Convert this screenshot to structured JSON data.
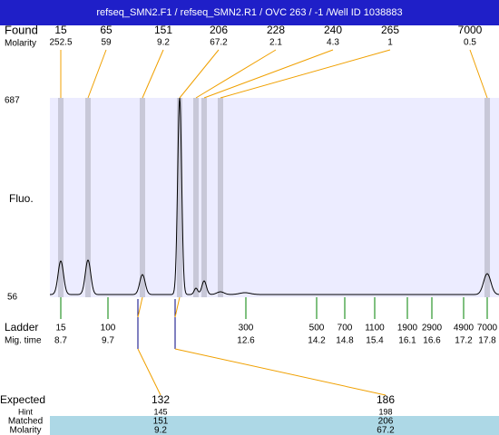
{
  "header": {
    "title": "refseq_SMN2.F1 / refseq_SMN2.R1 / OVC 263 / -1 /Well ID 1038883"
  },
  "found": {
    "label": "Found",
    "molarity_label": "Molarity",
    "peaks": [
      {
        "size": 15,
        "molarity": 252.5
      },
      {
        "size": 65,
        "molarity": 59
      },
      {
        "size": 151,
        "molarity": 9.2
      },
      {
        "size": 206,
        "molarity": 67.2
      },
      {
        "size": 228,
        "molarity": 2.1
      },
      {
        "size": 240,
        "molarity": 4.3
      },
      {
        "size": 265,
        "molarity": 1
      },
      {
        "size": 7000,
        "molarity": 0.5
      }
    ]
  },
  "plot": {
    "y_max": 687,
    "y_min": 56,
    "y_label": "Fluo."
  },
  "ladder": {
    "label": "Ladder",
    "mig_label": "Mig. time",
    "peaks": [
      {
        "size": 15,
        "time": 8.7
      },
      {
        "size": 100,
        "time": 9.7
      },
      {
        "size": 300,
        "time": 12.6
      },
      {
        "size": 500,
        "time": 14.2
      },
      {
        "size": 700,
        "time": 14.8
      },
      {
        "size": 1100,
        "time": 15.4
      },
      {
        "size": 1900,
        "time": 16.1
      },
      {
        "size": 2900,
        "time": 16.6
      },
      {
        "size": 4900,
        "time": 17.2
      },
      {
        "size": 7000,
        "time": 17.8
      }
    ]
  },
  "expected": {
    "labels": [
      "Expected",
      "Hint",
      "Matched",
      "Molarity"
    ],
    "columns": [
      {
        "expected": 132,
        "hint": 145,
        "matched": 151,
        "molarity": 9.2
      },
      {
        "expected": 186,
        "hint": 198,
        "matched": 206,
        "molarity": 67.2
      }
    ]
  }
}
